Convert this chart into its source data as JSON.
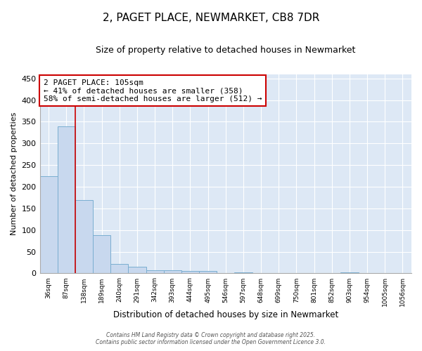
{
  "title": "2, PAGET PLACE, NEWMARKET, CB8 7DR",
  "subtitle": "Size of property relative to detached houses in Newmarket",
  "xlabel": "Distribution of detached houses by size in Newmarket",
  "ylabel": "Number of detached properties",
  "bar_labels": [
    "36sqm",
    "87sqm",
    "138sqm",
    "189sqm",
    "240sqm",
    "291sqm",
    "342sqm",
    "393sqm",
    "444sqm",
    "495sqm",
    "546sqm",
    "597sqm",
    "648sqm",
    "699sqm",
    "750sqm",
    "801sqm",
    "852sqm",
    "903sqm",
    "954sqm",
    "1005sqm",
    "1056sqm"
  ],
  "bar_values": [
    225,
    340,
    170,
    88,
    22,
    15,
    7,
    8,
    5,
    5,
    0,
    3,
    0,
    0,
    0,
    0,
    0,
    3,
    0,
    0,
    0
  ],
  "bar_color": "#c8d8ee",
  "bar_edge_color": "#7aaed0",
  "ylim": [
    0,
    460
  ],
  "yticks": [
    0,
    50,
    100,
    150,
    200,
    250,
    300,
    350,
    400,
    450
  ],
  "red_line_x": 1.5,
  "annotation_text": "2 PAGET PLACE: 105sqm\n← 41% of detached houses are smaller (358)\n58% of semi-detached houses are larger (512) →",
  "annotation_box_color": "#cc0000",
  "background_color": "#dde8f5",
  "grid_color": "#ffffff",
  "footer_line1": "Contains HM Land Registry data © Crown copyright and database right 2025.",
  "footer_line2": "Contains public sector information licensed under the Open Government Licence 3.0."
}
